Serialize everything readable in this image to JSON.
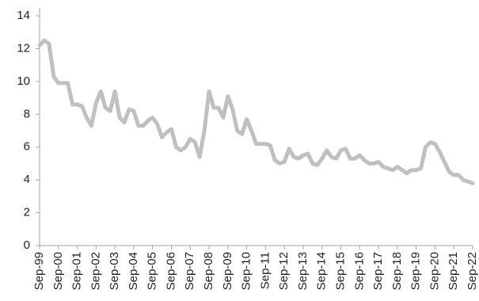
{
  "chart_data": {
    "type": "line",
    "categories": [
      "Sep-99",
      null,
      null,
      null,
      "Sep-00",
      null,
      null,
      null,
      "Sep-01",
      null,
      null,
      null,
      "Sep-02",
      null,
      null,
      null,
      "Sep-03",
      null,
      null,
      null,
      "Sep-04",
      null,
      null,
      null,
      "Sep-05",
      null,
      null,
      null,
      "Sep-06",
      null,
      null,
      null,
      "Sep-07",
      null,
      null,
      null,
      "Sep-08",
      null,
      null,
      null,
      "Sep-09",
      null,
      null,
      null,
      "Sep-10",
      null,
      null,
      null,
      "Sep-11",
      null,
      null,
      null,
      "Sep-12",
      null,
      null,
      null,
      "Sep-13",
      null,
      null,
      null,
      "Sep-14",
      null,
      null,
      null,
      "Sep-15",
      null,
      null,
      null,
      "Sep-16",
      null,
      null,
      null,
      "Sep-17",
      null,
      null,
      null,
      "Sep-18",
      null,
      null,
      null,
      "Sep-19",
      null,
      null,
      null,
      "Sep-20",
      null,
      null,
      null,
      "Sep-21",
      null,
      null,
      null,
      "Sep-22"
    ],
    "values": [
      12.2,
      12.5,
      12.3,
      10.3,
      9.9,
      9.9,
      9.9,
      8.6,
      8.6,
      8.5,
      7.8,
      7.3,
      8.7,
      9.4,
      8.4,
      8.2,
      9.4,
      7.8,
      7.5,
      8.3,
      8.2,
      7.3,
      7.3,
      7.6,
      7.8,
      7.4,
      6.6,
      6.9,
      7.1,
      6.0,
      5.8,
      6.0,
      6.5,
      6.3,
      5.4,
      7.0,
      9.4,
      8.4,
      8.4,
      7.8,
      9.1,
      8.3,
      7.0,
      6.8,
      7.7,
      7.0,
      6.2,
      6.2,
      6.2,
      6.1,
      5.2,
      5.0,
      5.1,
      5.9,
      5.4,
      5.3,
      5.5,
      5.6,
      5.0,
      4.9,
      5.3,
      5.8,
      5.4,
      5.3,
      5.8,
      5.9,
      5.3,
      5.3,
      5.5,
      5.2,
      5.0,
      5.0,
      5.1,
      4.8,
      4.7,
      4.6,
      4.8,
      4.6,
      4.4,
      4.6,
      4.6,
      4.7,
      6.0,
      6.3,
      6.2,
      5.7,
      5.1,
      4.5,
      4.3,
      4.3,
      4.0,
      3.9,
      3.8
    ],
    "color": "#c0c0c0",
    "ylim": [
      0,
      14
    ],
    "yticks": [
      0,
      2,
      4,
      6,
      8,
      10,
      12,
      14
    ],
    "grid": false
  }
}
